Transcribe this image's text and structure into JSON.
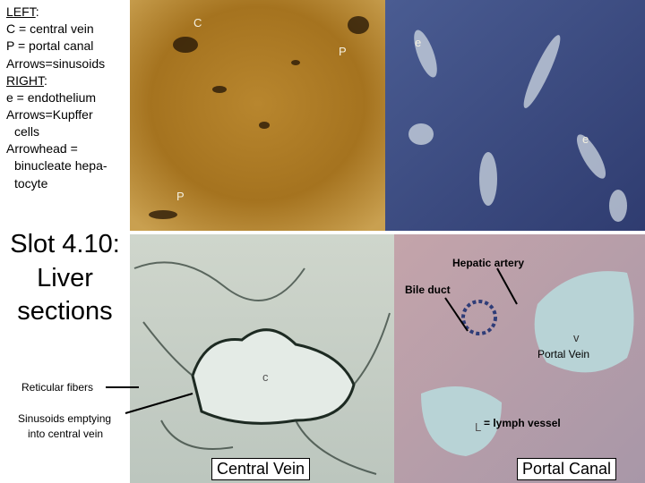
{
  "legend": {
    "left_heading": "LEFT",
    "left_colon": ":",
    "left_lines": [
      "C = central vein",
      "P = portal canal",
      "Arrows=sinusoids"
    ],
    "right_heading": "RIGHT",
    "right_colon": ":",
    "right_lines": [
      "e = endothelium",
      "Arrows=Kupffer",
      "cells",
      "Arrowhead =",
      "binucleate hepa-",
      "tocyte"
    ]
  },
  "title": {
    "lines": [
      "Slot 4.10:",
      "Liver",
      "sections"
    ]
  },
  "labels": {
    "reticular_fibers": "Reticular fibers",
    "sinusoids": [
      "Sinusoids emptying",
      "into central vein"
    ],
    "hepatic_artery": "Hepatic artery",
    "bile_duct": "Bile duct",
    "portal_vein": "Portal Vein",
    "lymph_vessel": "= lymph vessel"
  },
  "image_letters": {
    "c": "C",
    "p1": "P",
    "p2": "P",
    "e1": "e",
    "e2": "e",
    "cv": "c",
    "v": "v",
    "l": "L"
  },
  "panels": {
    "central_vein": "Central Vein",
    "portal_canal": "Portal Canal"
  }
}
